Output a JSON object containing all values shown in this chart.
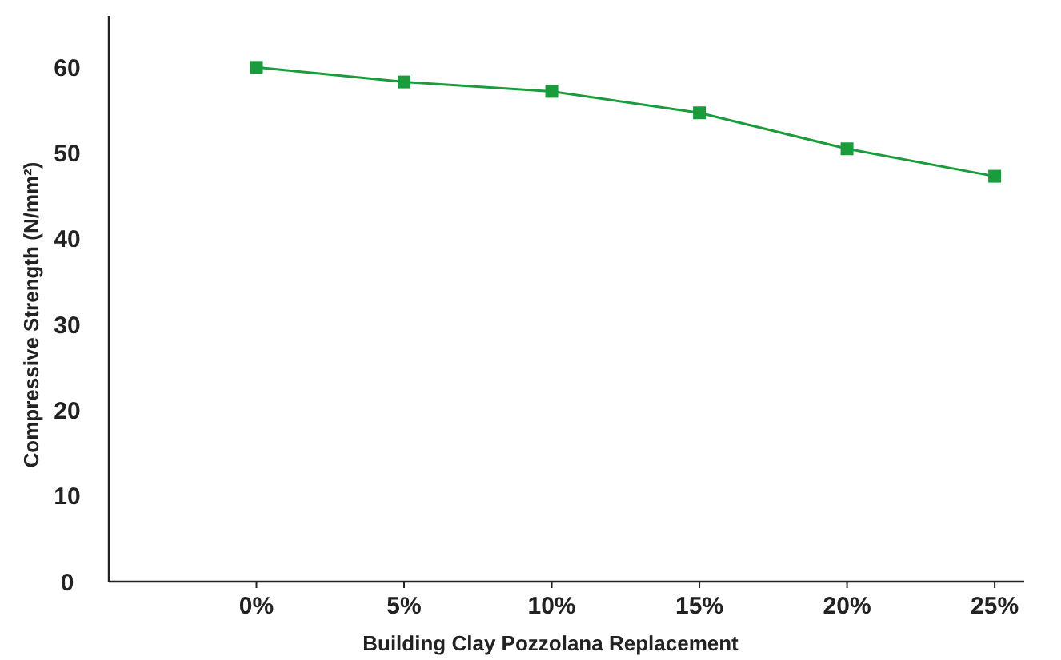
{
  "chart_data": {
    "type": "line",
    "xlabel": "Building Clay Pozzolana Replacement",
    "ylabel": "Compressive Strength (N/mm²)",
    "categories": [
      "0%",
      "5%",
      "10%",
      "15%",
      "20%",
      "25%"
    ],
    "series": [
      {
        "color": "#1a9c3c",
        "values": [
          60,
          58.3,
          57.2,
          54.7,
          50.5,
          47.3
        ]
      }
    ],
    "ylim": [
      0,
      66
    ],
    "yticks": [
      0,
      10,
      20,
      30,
      40,
      50,
      60
    ],
    "grid": false,
    "marker": "square",
    "line_style": "solid"
  }
}
